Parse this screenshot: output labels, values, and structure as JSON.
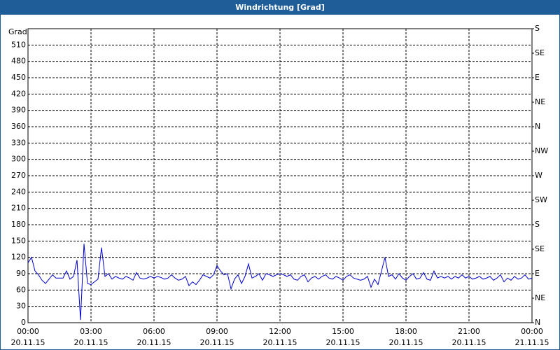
{
  "chart_data": {
    "type": "line",
    "title": "Windrichtung [Grad]",
    "y_label": "Grad",
    "x": [
      0,
      10,
      20,
      30,
      40,
      50,
      60,
      70,
      80,
      90,
      100,
      110,
      120,
      130,
      140,
      150,
      160,
      170,
      180,
      190,
      200,
      210,
      220,
      230,
      240,
      250,
      260,
      270,
      280,
      290,
      300,
      310,
      320,
      330,
      340,
      350,
      360,
      370,
      380,
      390,
      400,
      410,
      420,
      430,
      440,
      450,
      460,
      470,
      480,
      490,
      500,
      510,
      520,
      530,
      540,
      550,
      560,
      570,
      580,
      590,
      600,
      610,
      620,
      630,
      640,
      650,
      660,
      670,
      680,
      690,
      700,
      710,
      720,
      730,
      740,
      750,
      760,
      770,
      780,
      790,
      800,
      810,
      820,
      830,
      840,
      850,
      860,
      870,
      880,
      890,
      900,
      910,
      920,
      930,
      940,
      950,
      960,
      970,
      980,
      990,
      1000,
      1010,
      1020,
      1030,
      1040,
      1050,
      1060,
      1070,
      1080,
      1090,
      1100,
      1110,
      1120,
      1130,
      1140,
      1150,
      1160,
      1170,
      1180,
      1190,
      1200,
      1210,
      1220,
      1230,
      1240,
      1250,
      1260,
      1270,
      1280,
      1290,
      1300,
      1310,
      1320,
      1330,
      1340,
      1350,
      1360,
      1370,
      1380,
      1390,
      1400,
      1410,
      1420,
      1430,
      1440
    ],
    "series": [
      {
        "name": "Windrichtung",
        "color": "#0000cc",
        "values": [
          110,
          120,
          95,
          88,
          78,
          72,
          80,
          88,
          82,
          82,
          82,
          95,
          80,
          85,
          115,
          5,
          145,
          72,
          70,
          75,
          80,
          138,
          85,
          90,
          80,
          85,
          82,
          80,
          85,
          82,
          78,
          92,
          82,
          80,
          82,
          85,
          82,
          85,
          83,
          80,
          82,
          88,
          82,
          78,
          80,
          85,
          68,
          75,
          70,
          78,
          88,
          85,
          82,
          88,
          105,
          95,
          88,
          90,
          62,
          80,
          88,
          72,
          85,
          108,
          82,
          85,
          90,
          78,
          90,
          88,
          85,
          88,
          90,
          88,
          85,
          88,
          80,
          78,
          85,
          88,
          75,
          82,
          85,
          80,
          85,
          88,
          82,
          80,
          85,
          82,
          78,
          85,
          88,
          82,
          80,
          78,
          80,
          85,
          65,
          80,
          70,
          95,
          120,
          85,
          88,
          80,
          90,
          82,
          78,
          85,
          90,
          80,
          82,
          92,
          80,
          78,
          95,
          82,
          85,
          82,
          85,
          80,
          85,
          82,
          88,
          82,
          85,
          80,
          82,
          85,
          80,
          82,
          85,
          78,
          82,
          88,
          75,
          82,
          78,
          85,
          80,
          82,
          88,
          80,
          82
        ]
      }
    ],
    "xlim": [
      0,
      1440
    ],
    "xticks": [
      {
        "value": 0,
        "label": "00:00"
      },
      {
        "value": 180,
        "label": "03:00"
      },
      {
        "value": 360,
        "label": "06:00"
      },
      {
        "value": 540,
        "label": "09:00"
      },
      {
        "value": 720,
        "label": "12:00"
      },
      {
        "value": 900,
        "label": "15:00"
      },
      {
        "value": 1080,
        "label": "18:00"
      },
      {
        "value": 1260,
        "label": "21:00"
      },
      {
        "value": 1440,
        "label": "00:00"
      }
    ],
    "xtick_dates": [
      "20.11.15",
      "20.11.15",
      "20.11.15",
      "20.11.15",
      "20.11.15",
      "20.11.15",
      "20.11.15",
      "20.11.15",
      "21.11.15"
    ],
    "ylim": [
      0,
      540
    ],
    "yticks": [
      0,
      30,
      60,
      90,
      120,
      150,
      180,
      210,
      240,
      270,
      300,
      330,
      360,
      390,
      420,
      450,
      480,
      510
    ],
    "y2lim": [
      0,
      540
    ],
    "y2ticks": [
      {
        "value": 0,
        "label": "N"
      },
      {
        "value": 45,
        "label": "NE"
      },
      {
        "value": 90,
        "label": "E"
      },
      {
        "value": 135,
        "label": "SE"
      },
      {
        "value": 180,
        "label": "S"
      },
      {
        "value": 225,
        "label": "SW"
      },
      {
        "value": 270,
        "label": "W"
      },
      {
        "value": 315,
        "label": "NW"
      },
      {
        "value": 360,
        "label": "N"
      },
      {
        "value": 405,
        "label": "NE"
      },
      {
        "value": 450,
        "label": "E"
      },
      {
        "value": 495,
        "label": "SE"
      },
      {
        "value": 540,
        "label": "S"
      }
    ],
    "grid": true
  }
}
